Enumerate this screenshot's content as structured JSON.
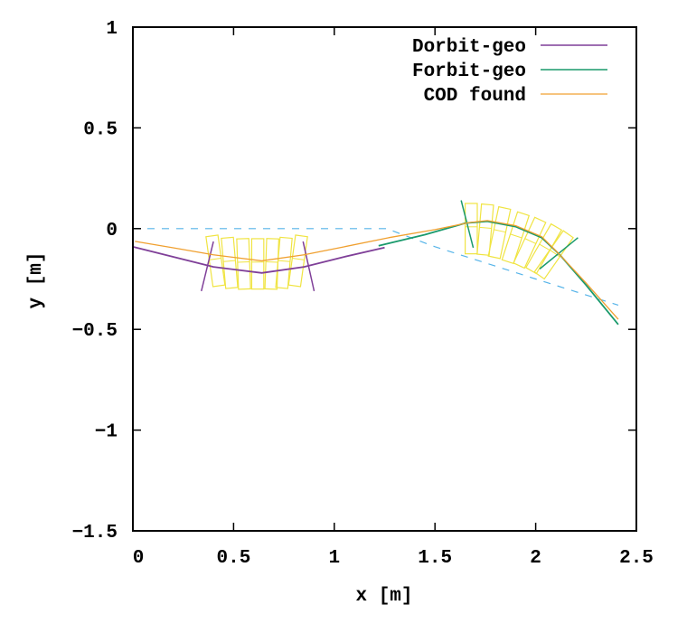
{
  "chart_data": {
    "type": "line",
    "title": "",
    "xlabel": "x [m]",
    "ylabel": "y [m]",
    "xlim": [
      0,
      2.5
    ],
    "ylim": [
      -1.5,
      1
    ],
    "xticks": [
      "0",
      "0.5",
      "1",
      "1.5",
      "2",
      "2.5"
    ],
    "xtick_values": [
      0,
      0.5,
      1,
      1.5,
      2,
      2.5
    ],
    "yticks": [
      "1",
      "0.5",
      "0",
      "−0.5",
      "−1",
      "−1.5"
    ],
    "ytick_values": [
      1,
      0.5,
      0,
      -0.5,
      -1,
      -1.5
    ],
    "grid": false,
    "legend_position": "top-right",
    "series": [
      {
        "name": "Dorbit-geo",
        "color": "#7f3f98",
        "x": [
          0,
          0.2,
          0.4,
          0.64,
          0.85,
          1.05,
          1.25
        ],
        "y": [
          -0.09,
          -0.14,
          -0.19,
          -0.22,
          -0.19,
          -0.14,
          -0.094
        ]
      },
      {
        "name": "Forbit-geo",
        "color": "#1a9a6c",
        "x": [
          1.22,
          1.45,
          1.65,
          1.76,
          1.9,
          2.03,
          2.12,
          2.25,
          2.41
        ],
        "y": [
          -0.085,
          -0.03,
          0.027,
          0.036,
          0.01,
          -0.045,
          -0.13,
          -0.28,
          -0.476
        ]
      },
      {
        "name": "COD found",
        "color": "#f0a030",
        "x": [
          0.01,
          0.2,
          0.4,
          0.64,
          0.85,
          1.05,
          1.27,
          1.5,
          1.67,
          1.76,
          1.9,
          2.03,
          2.12,
          2.25,
          2.41
        ],
        "y": [
          -0.063,
          -0.095,
          -0.13,
          -0.16,
          -0.13,
          -0.09,
          -0.045,
          -0.005,
          0.03,
          0.04,
          0.015,
          -0.04,
          -0.13,
          -0.27,
          -0.45
        ]
      }
    ],
    "reference_line": {
      "color": "#56b4e9",
      "x": [
        0,
        1.26,
        1.5,
        2.0,
        2.41
      ],
      "y": [
        0,
        0,
        -0.09,
        -0.25,
        -0.38
      ]
    },
    "magnets": {
      "color": "#f0e442",
      "boxes": [
        {
          "x": 0.41,
          "y": -0.16,
          "angle": -8
        },
        {
          "x": 0.48,
          "y": -0.17,
          "angle": -5
        },
        {
          "x": 0.55,
          "y": -0.175,
          "angle": -2
        },
        {
          "x": 0.62,
          "y": -0.175,
          "angle": 0
        },
        {
          "x": 0.69,
          "y": -0.175,
          "angle": 2
        },
        {
          "x": 0.75,
          "y": -0.17,
          "angle": 5
        },
        {
          "x": 0.82,
          "y": -0.16,
          "angle": 8
        },
        {
          "x": 1.68,
          "y": 0.0,
          "angle": 0
        },
        {
          "x": 1.75,
          "y": -0.005,
          "angle": 5
        },
        {
          "x": 1.82,
          "y": -0.02,
          "angle": 12
        },
        {
          "x": 1.9,
          "y": -0.045,
          "angle": 18
        },
        {
          "x": 1.97,
          "y": -0.07,
          "angle": 25
        },
        {
          "x": 2.04,
          "y": -0.1,
          "angle": 30
        },
        {
          "x": 2.09,
          "y": -0.13,
          "angle": 35
        }
      ]
    },
    "edge_lines": [
      {
        "color": "#7f3f98",
        "x": [
          0.34,
          0.4
        ],
        "y": [
          -0.31,
          -0.064
        ]
      },
      {
        "color": "#7f3f98",
        "x": [
          0.845,
          0.9
        ],
        "y": [
          -0.064,
          -0.31
        ]
      },
      {
        "color": "#1a9a6c",
        "x": [
          1.63,
          1.69
        ],
        "y": [
          0.14,
          -0.095
        ]
      },
      {
        "color": "#1a9a6c",
        "x": [
          2.02,
          2.21
        ],
        "y": [
          -0.2,
          -0.045
        ]
      }
    ]
  }
}
